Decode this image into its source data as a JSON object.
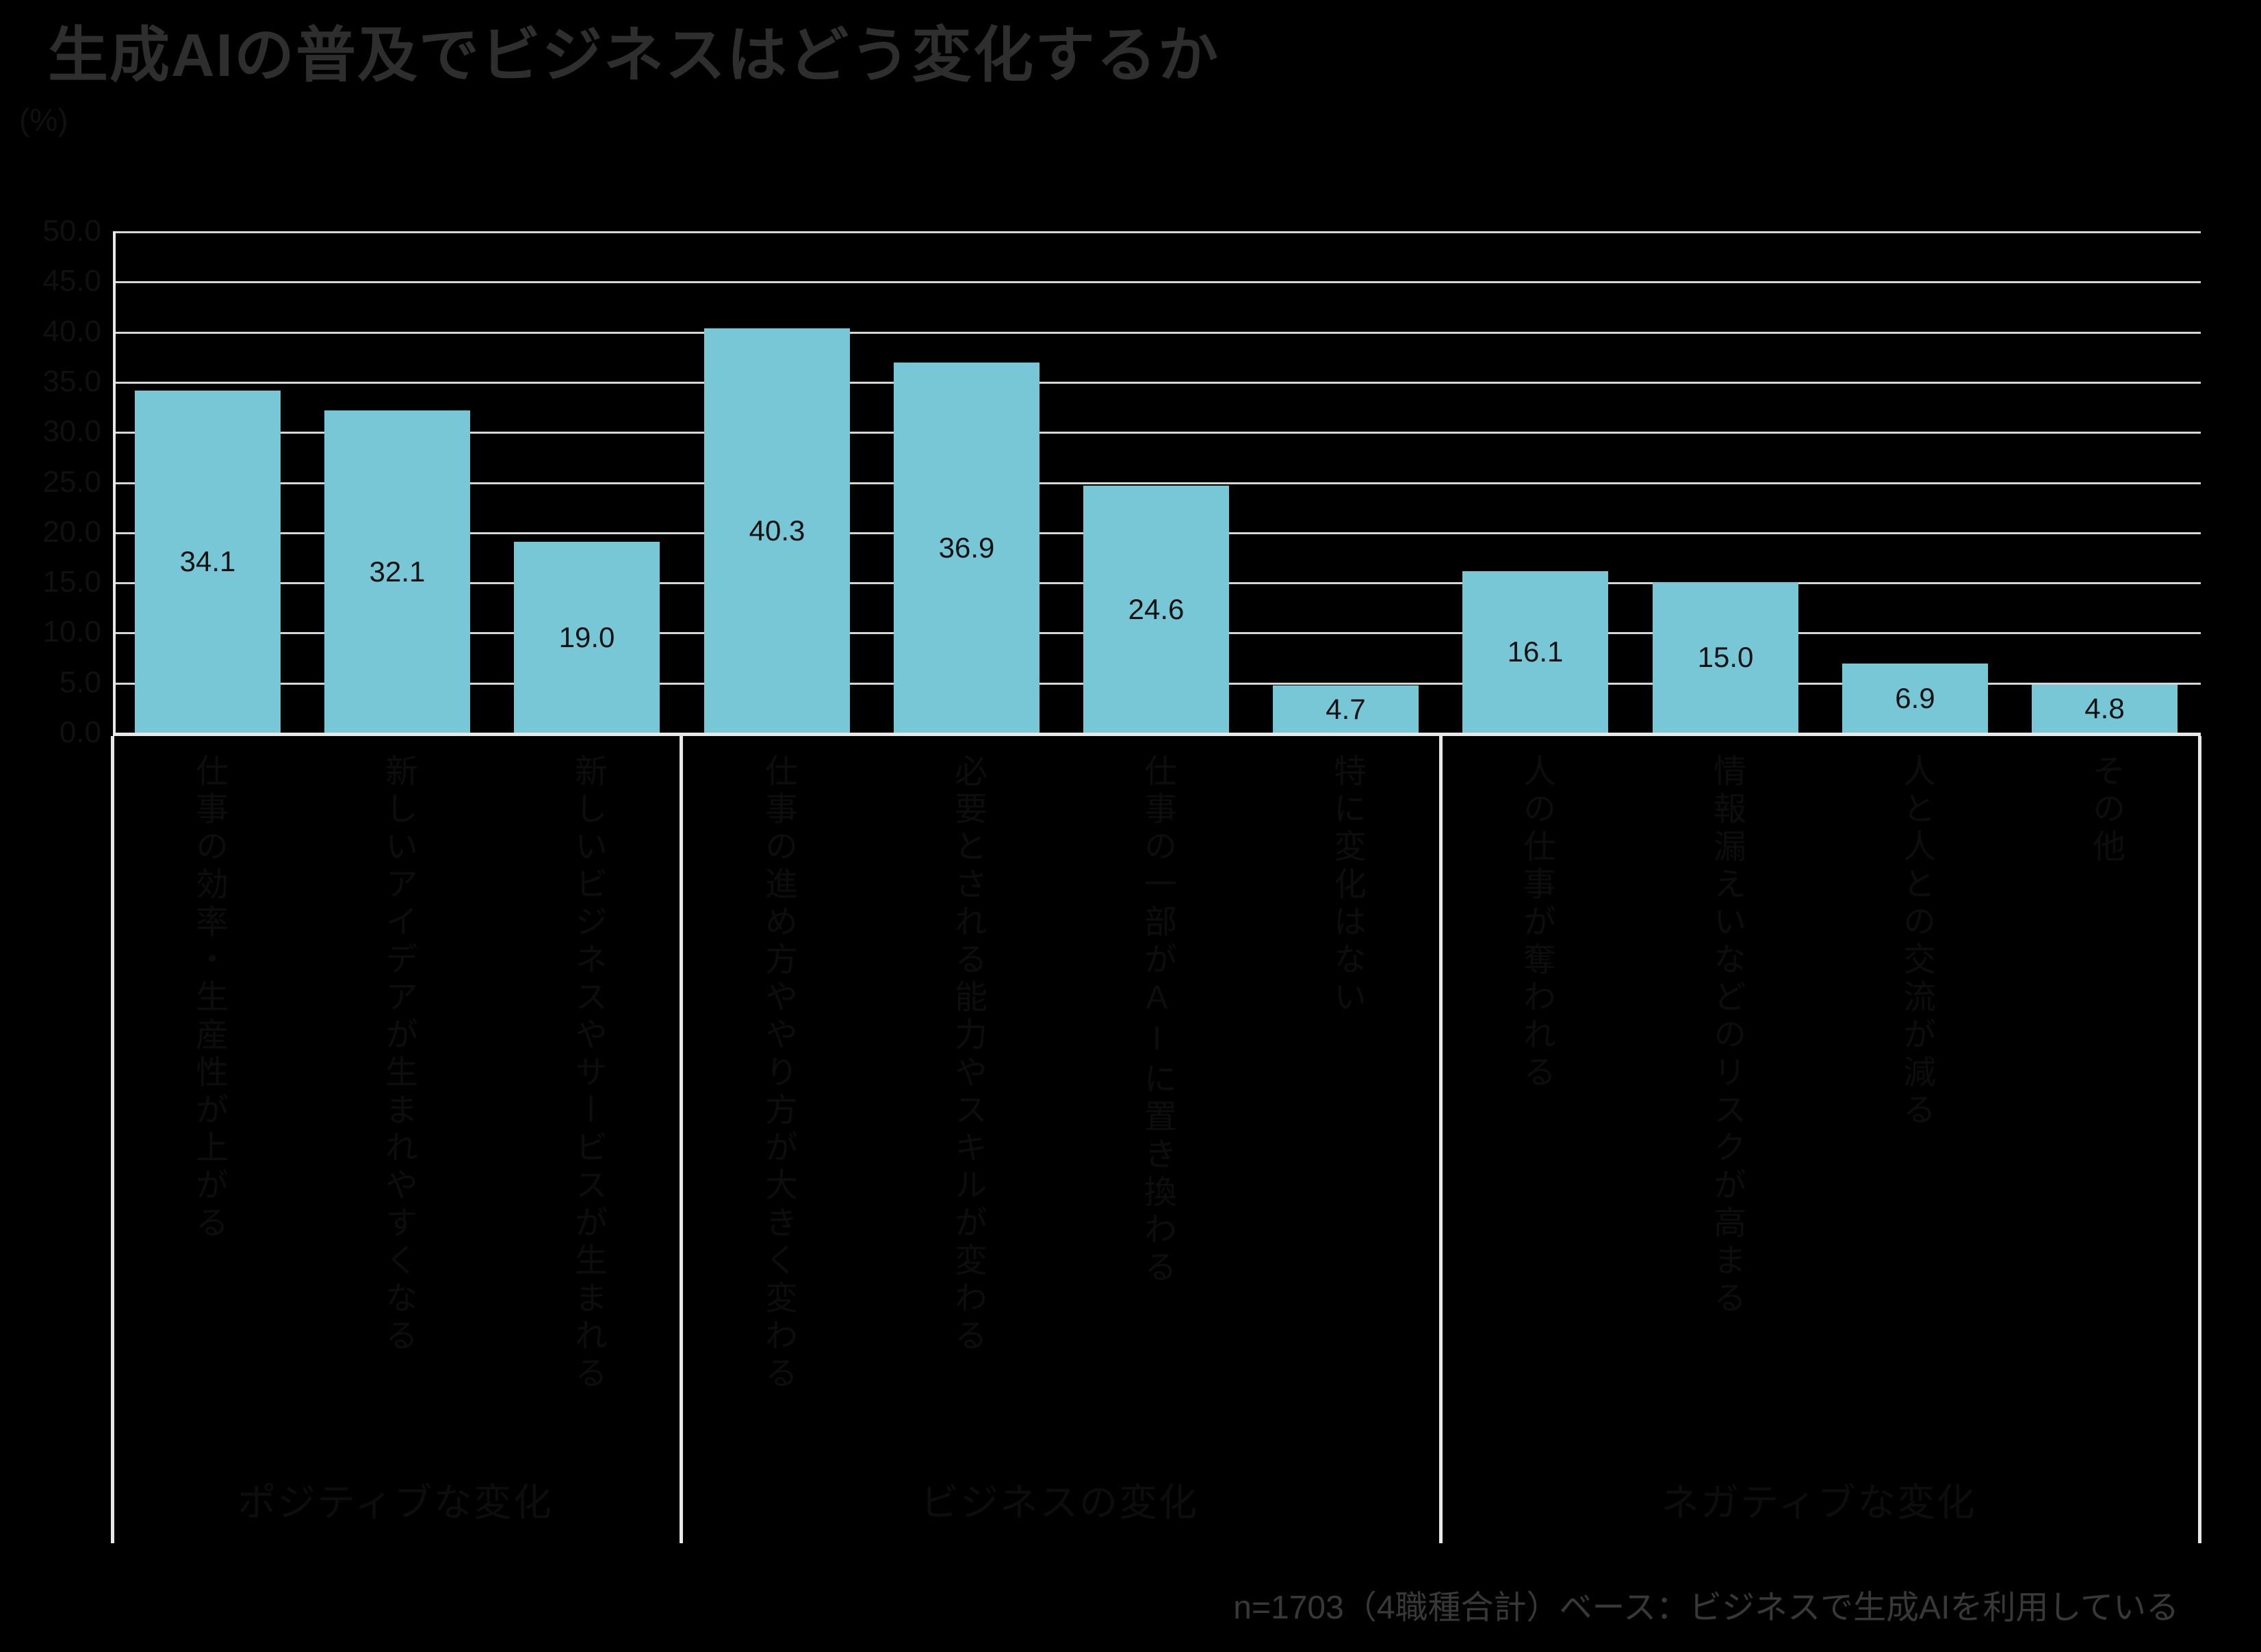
{
  "title": "生成AIの普及でビジネスはどう変化するか",
  "unit_label": "(%)",
  "note": "n=1703（4職種合計）ベース：ビジネスで生成AIを利用している",
  "colors": {
    "background": "#000000",
    "bar_fill": "#78c7d7",
    "gridline": "#d6d6d6",
    "axis_line": "#e8e8e8",
    "title_text": "#2e2e2e",
    "value_text": "#121212",
    "hidden_text": "#0d0d0d",
    "note_text": "#383838"
  },
  "chart_data": {
    "type": "bar",
    "title": "生成AIの普及でビジネスはどう変化するか",
    "ylabel": "(%)",
    "ylim": [
      0,
      50
    ],
    "ytick_step": 5,
    "yticks": [
      "50.0",
      "45.0",
      "40.0",
      "35.0",
      "30.0",
      "25.0",
      "20.0",
      "15.0",
      "10.0",
      "5.0",
      "0.0"
    ],
    "grid": true,
    "legend": false,
    "note": "n=1703（4職種合計）ベース：ビジネスで生成AIを利用している",
    "groups": [
      {
        "label": "ポジティブな変化",
        "items": [
          {
            "label": "仕事の効率・生産性が上がる",
            "value": 34.1,
            "value_text": "34.1"
          },
          {
            "label": "新しいアイデアが生まれやすくなる",
            "value": 32.1,
            "value_text": "32.1"
          },
          {
            "label": "新しいビジネスやサービスが生まれる",
            "value": 19.0,
            "value_text": "19.0"
          }
        ]
      },
      {
        "label": "ビジネスの変化",
        "items": [
          {
            "label": "仕事の進め方ややり方が大きく変わる",
            "value": 40.3,
            "value_text": "40.3"
          },
          {
            "label": "必要とされる能力やスキルが変わる",
            "value": 36.9,
            "value_text": "36.9"
          },
          {
            "label": "仕事の一部がAIに置き換わる",
            "value": 24.6,
            "value_text": "24.6"
          },
          {
            "label": "特に変化はない",
            "value": 4.7,
            "value_text": "4.7"
          }
        ]
      },
      {
        "label": "ネガティブな変化",
        "items": [
          {
            "label": "人の仕事が奪われる",
            "value": 16.1,
            "value_text": "16.1"
          },
          {
            "label": "情報漏えいなどのリスクが高まる",
            "value": 15.0,
            "value_text": "15.0"
          },
          {
            "label": "人と人との交流が減る",
            "value": 6.9,
            "value_text": "6.9"
          },
          {
            "label": "その他",
            "value": 4.8,
            "value_text": "4.8"
          }
        ]
      }
    ]
  }
}
